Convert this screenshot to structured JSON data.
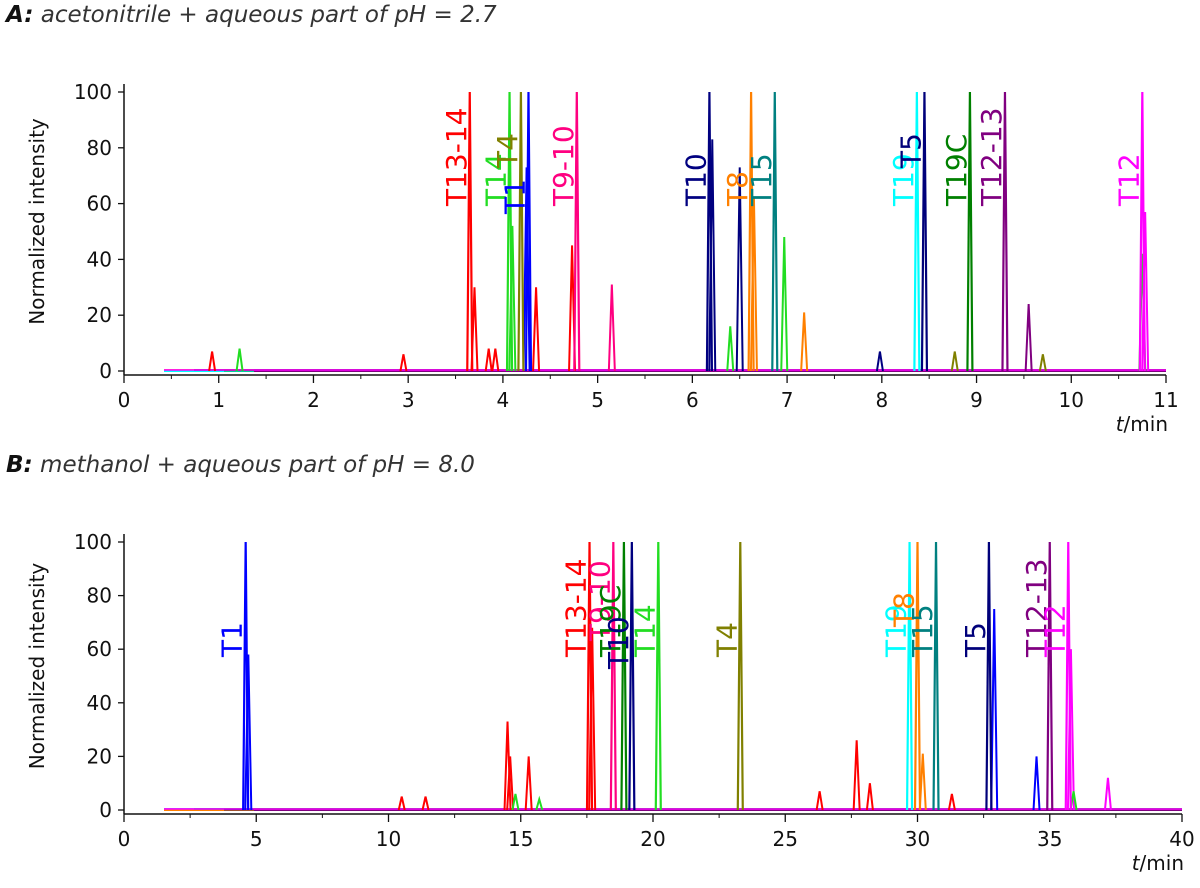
{
  "chart_data": [
    {
      "type": "line",
      "panel_letter": "A:",
      "title": "acetonitrile + aqueous part of pH = 2.7",
      "xlabel_italic": "t",
      "xlabel_rest": "/min",
      "ylabel": "Normalized intensity",
      "xlim": [
        0,
        11
      ],
      "ylim": [
        0,
        100
      ],
      "x_ticks": [
        0,
        1,
        2,
        3,
        4,
        5,
        6,
        7,
        8,
        9,
        10,
        11
      ],
      "y_ticks": [
        0,
        20,
        40,
        60,
        80,
        100
      ],
      "grid": false,
      "peaks": [
        {
          "label": "T13-14",
          "color": "#ff0000",
          "x": 3.65,
          "height": 100
        },
        {
          "label": "T14",
          "color": "#22dd22",
          "x": 4.07,
          "height": 100
        },
        {
          "label": "T4",
          "color": "#808000",
          "x": 4.19,
          "height": 100
        },
        {
          "label": "T1",
          "color": "#0000ff",
          "x": 4.27,
          "height": 100
        },
        {
          "label": "T9-10",
          "color": "#ff0080",
          "x": 4.78,
          "height": 100
        },
        {
          "label": "T10",
          "color": "#000080",
          "x": 6.18,
          "height": 100
        },
        {
          "label": "T8",
          "color": "#ff8000",
          "x": 6.62,
          "height": 100
        },
        {
          "label": "T15",
          "color": "#008080",
          "x": 6.87,
          "height": 100
        },
        {
          "label": "T19",
          "color": "#00ffff",
          "x": 8.37,
          "height": 100
        },
        {
          "label": "T5",
          "color": "#00007a",
          "x": 8.45,
          "height": 100
        },
        {
          "label": "T19C",
          "color": "#008000",
          "x": 8.93,
          "height": 100
        },
        {
          "label": "T12-13",
          "color": "#800080",
          "x": 9.3,
          "height": 100
        },
        {
          "label": "T12",
          "color": "#ff00ff",
          "x": 10.75,
          "height": 100
        }
      ],
      "minor_peaks": [
        {
          "color": "#ff0000",
          "x": 0.93,
          "height": 7
        },
        {
          "color": "#22dd22",
          "x": 1.22,
          "height": 8
        },
        {
          "color": "#ff0000",
          "x": 2.95,
          "height": 6
        },
        {
          "color": "#ff0000",
          "x": 3.7,
          "height": 30
        },
        {
          "color": "#ff0000",
          "x": 3.85,
          "height": 8
        },
        {
          "color": "#ff0000",
          "x": 3.92,
          "height": 8
        },
        {
          "color": "#22dd22",
          "x": 4.1,
          "height": 52
        },
        {
          "color": "#0000ff",
          "x": 4.25,
          "height": 73
        },
        {
          "color": "#ff0000",
          "x": 4.35,
          "height": 30
        },
        {
          "color": "#ff0000",
          "x": 4.73,
          "height": 45
        },
        {
          "color": "#ff0080",
          "x": 5.15,
          "height": 31
        },
        {
          "color": "#000080",
          "x": 6.21,
          "height": 83
        },
        {
          "color": "#22dd22",
          "x": 6.4,
          "height": 16
        },
        {
          "color": "#000080",
          "x": 6.5,
          "height": 73
        },
        {
          "color": "#ff8000",
          "x": 6.65,
          "height": 62
        },
        {
          "color": "#22dd22",
          "x": 6.97,
          "height": 48
        },
        {
          "color": "#ff8000",
          "x": 7.18,
          "height": 21
        },
        {
          "color": "#000080",
          "x": 7.98,
          "height": 7
        },
        {
          "color": "#808000",
          "x": 8.77,
          "height": 7
        },
        {
          "color": "#800080",
          "x": 9.55,
          "height": 24
        },
        {
          "color": "#808000",
          "x": 9.7,
          "height": 6
        },
        {
          "color": "#22dd22",
          "x": 10.75,
          "height": 42
        },
        {
          "color": "#ff00ff",
          "x": 10.78,
          "height": 57
        }
      ]
    },
    {
      "type": "line",
      "panel_letter": "B:",
      "title": "methanol + aqueous part of pH = 8.0",
      "xlabel_italic": "t",
      "xlabel_rest": "/min",
      "ylabel": "Normalized intensity",
      "xlim": [
        0,
        40
      ],
      "ylim": [
        0,
        100
      ],
      "x_ticks": [
        0,
        5,
        10,
        15,
        20,
        25,
        30,
        35,
        40
      ],
      "y_ticks": [
        0,
        20,
        40,
        60,
        80,
        100
      ],
      "grid": false,
      "peaks": [
        {
          "label": "T1",
          "color": "#0000ff",
          "x": 4.6,
          "height": 100
        },
        {
          "label": "T13-14",
          "color": "#ff0000",
          "x": 17.6,
          "height": 100
        },
        {
          "label": "T9-10",
          "color": "#ff0080",
          "x": 18.5,
          "height": 100
        },
        {
          "label": "T19C",
          "color": "#008000",
          "x": 18.9,
          "height": 100
        },
        {
          "label": "T10",
          "color": "#000080",
          "x": 19.2,
          "height": 100
        },
        {
          "label": "T14",
          "color": "#22dd22",
          "x": 20.2,
          "height": 100
        },
        {
          "label": "T4",
          "color": "#808000",
          "x": 23.3,
          "height": 100
        },
        {
          "label": "T19",
          "color": "#00ffff",
          "x": 29.7,
          "height": 100
        },
        {
          "label": "T8",
          "color": "#ff8000",
          "x": 30.0,
          "height": 100
        },
        {
          "label": "T15",
          "color": "#008080",
          "x": 30.7,
          "height": 100
        },
        {
          "label": "T5",
          "color": "#00007a",
          "x": 32.7,
          "height": 100
        },
        {
          "label": "T12-13",
          "color": "#800080",
          "x": 35.0,
          "height": 100
        },
        {
          "label": "T12",
          "color": "#ff00ff",
          "x": 35.7,
          "height": 100
        }
      ],
      "minor_peaks": [
        {
          "color": "#0000ff",
          "x": 4.7,
          "height": 58
        },
        {
          "color": "#ff0000",
          "x": 10.5,
          "height": 5
        },
        {
          "color": "#ff0000",
          "x": 11.4,
          "height": 5
        },
        {
          "color": "#ff0000",
          "x": 14.5,
          "height": 33
        },
        {
          "color": "#ff0000",
          "x": 14.6,
          "height": 20
        },
        {
          "color": "#22dd22",
          "x": 14.8,
          "height": 6
        },
        {
          "color": "#ff0000",
          "x": 15.3,
          "height": 20
        },
        {
          "color": "#22dd22",
          "x": 15.7,
          "height": 4
        },
        {
          "color": "#ff0000",
          "x": 17.7,
          "height": 68
        },
        {
          "color": "#ff8000",
          "x": 30.2,
          "height": 21
        },
        {
          "color": "#ff0000",
          "x": 26.3,
          "height": 7
        },
        {
          "color": "#ff0000",
          "x": 27.7,
          "height": 26
        },
        {
          "color": "#ff0000",
          "x": 28.2,
          "height": 10
        },
        {
          "color": "#ff0000",
          "x": 31.3,
          "height": 6
        },
        {
          "color": "#0000ff",
          "x": 32.9,
          "height": 75
        },
        {
          "color": "#0000ff",
          "x": 34.5,
          "height": 20
        },
        {
          "color": "#ff00ff",
          "x": 35.8,
          "height": 60
        },
        {
          "color": "#22dd22",
          "x": 35.9,
          "height": 7
        },
        {
          "color": "#ff00ff",
          "x": 37.2,
          "height": 12
        }
      ]
    }
  ]
}
